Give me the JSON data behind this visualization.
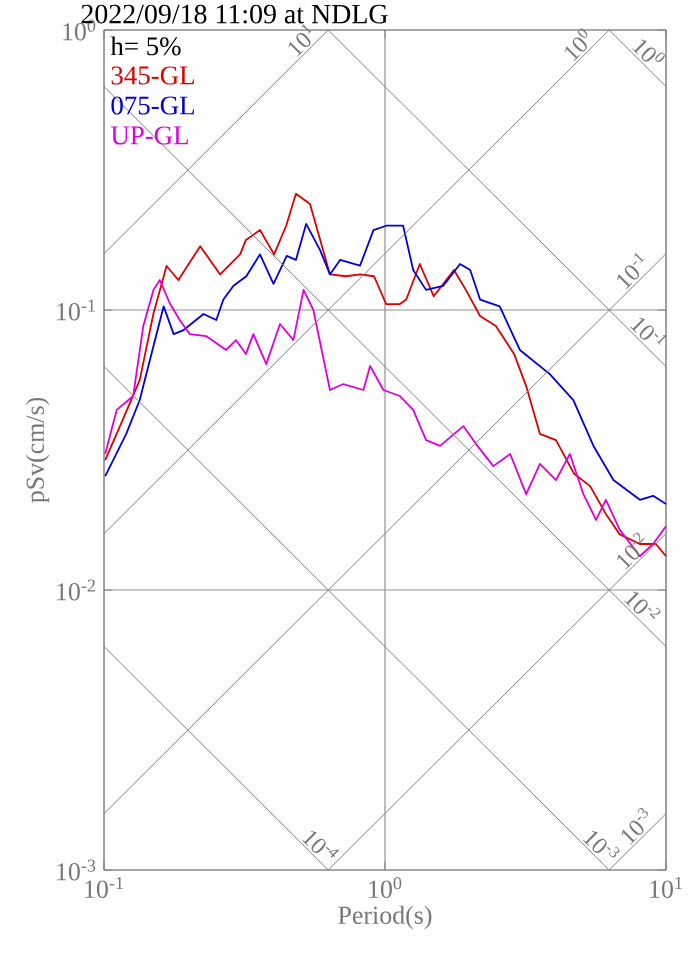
{
  "chart_data": {
    "type": "line",
    "title": "2022/09/18 11:09 at NDLG",
    "xlabel": "Period(s)",
    "ylabel": "pSv(cm/s)",
    "legend_title": "h= 5%",
    "legend": "top left",
    "log": "xy",
    "grid": true,
    "xlim": [
      0.1,
      10
    ],
    "ylim": [
      0.001,
      1
    ],
    "xticks": [
      {
        "value": 0.1,
        "label": "10$^{-1}$"
      },
      {
        "value": 1,
        "label": "10$^{0}$"
      },
      {
        "value": 10,
        "label": "10$^{1}$"
      }
    ],
    "yticks": [
      {
        "value": 0.001,
        "label": "10$^{-3}$"
      },
      {
        "value": 0.01,
        "label": "10$^{-2}$"
      },
      {
        "value": 0.1,
        "label": "10$^{-1}$"
      },
      {
        "value": 1,
        "label": "10$^{0}$"
      }
    ],
    "series": [
      {
        "name": "345-GL",
        "color": "#dd0000",
        "x": [
          0.101,
          0.114,
          0.134,
          0.15,
          0.167,
          0.184,
          0.22,
          0.259,
          0.305,
          0.32,
          0.359,
          0.403,
          0.445,
          0.482,
          0.541,
          0.637,
          0.726,
          0.815,
          0.914,
          1.01,
          1.13,
          1.19,
          1.33,
          1.49,
          1.76,
          1.94,
          2.18,
          2.48,
          2.88,
          3.18,
          3.56,
          4.06,
          4.71,
          5.37,
          6.11,
          6.85,
          8.07,
          9.2,
          10
        ],
        "values": [
          0.0291,
          0.0385,
          0.0562,
          0.0972,
          0.1436,
          0.128,
          0.169,
          0.134,
          0.158,
          0.178,
          0.193,
          0.158,
          0.2,
          0.26,
          0.239,
          0.134,
          0.132,
          0.134,
          0.132,
          0.105,
          0.105,
          0.109,
          0.146,
          0.112,
          0.139,
          0.118,
          0.0952,
          0.0877,
          0.0697,
          0.0535,
          0.0361,
          0.0343,
          0.026,
          0.0235,
          0.0187,
          0.0158,
          0.0146,
          0.0146,
          0.0132
        ]
      },
      {
        "name": "075-GL",
        "color": "#0000dd",
        "x": [
          0.101,
          0.12,
          0.134,
          0.15,
          0.163,
          0.177,
          0.192,
          0.226,
          0.251,
          0.266,
          0.289,
          0.321,
          0.359,
          0.401,
          0.447,
          0.482,
          0.524,
          0.587,
          0.637,
          0.692,
          0.815,
          0.91,
          1.01,
          1.16,
          1.26,
          1.4,
          1.61,
          1.85,
          2.01,
          2.18,
          2.56,
          3.02,
          3.86,
          4.68,
          5.52,
          6.5,
          8.07,
          9.0,
          10
        ],
        "values": [
          0.0255,
          0.0361,
          0.0477,
          0.0744,
          0.103,
          0.082,
          0.0848,
          0.0968,
          0.0921,
          0.109,
          0.122,
          0.132,
          0.158,
          0.124,
          0.156,
          0.151,
          0.203,
          0.164,
          0.134,
          0.151,
          0.144,
          0.193,
          0.2,
          0.2,
          0.139,
          0.118,
          0.122,
          0.146,
          0.139,
          0.109,
          0.103,
          0.072,
          0.059,
          0.0477,
          0.0327,
          0.0247,
          0.021,
          0.0217,
          0.0203
        ]
      },
      {
        "name": "UP-GL",
        "color": "#dd00dd",
        "x": [
          0.101,
          0.111,
          0.127,
          0.138,
          0.15,
          0.158,
          0.172,
          0.186,
          0.202,
          0.231,
          0.272,
          0.295,
          0.32,
          0.34,
          0.378,
          0.423,
          0.472,
          0.513,
          0.556,
          0.637,
          0.711,
          0.838,
          0.885,
          0.987,
          1.13,
          1.26,
          1.4,
          1.57,
          1.9,
          2.11,
          2.43,
          2.79,
          3.18,
          3.56,
          4.06,
          4.55,
          5.08,
          5.64,
          6.11,
          6.85,
          8.07,
          9.0,
          10
        ],
        "values": [
          0.0306,
          0.044,
          0.0493,
          0.0877,
          0.118,
          0.128,
          0.105,
          0.0921,
          0.082,
          0.0807,
          0.072,
          0.0781,
          0.0697,
          0.082,
          0.0641,
          0.0891,
          0.0781,
          0.118,
          0.1,
          0.0518,
          0.0544,
          0.0518,
          0.0631,
          0.0518,
          0.0493,
          0.044,
          0.0343,
          0.0327,
          0.0385,
          0.0332,
          0.0277,
          0.0306,
          0.022,
          0.0282,
          0.0247,
          0.0306,
          0.022,
          0.0178,
          0.021,
          0.0164,
          0.0132,
          0.0146,
          0.0169
        ]
      },
      {
        "color": "#808080",
        "x": [
          0.1,
          0.628
        ],
        "values": [
          0.159,
          1
        ]
      },
      {
        "color": "#808080",
        "x": [
          0.1,
          6.28
        ],
        "values": [
          0.0159,
          1
        ]
      },
      {
        "color": "#808080",
        "x": [
          0.1,
          10
        ],
        "values": [
          0.00159,
          0.159
        ]
      },
      {
        "color": "#808080",
        "x": [
          0.628,
          10
        ],
        "values": [
          0.001,
          0.0159
        ]
      },
      {
        "color": "#808080",
        "x": [
          6.28,
          10
        ],
        "values": [
          0.001,
          0.00159
        ]
      },
      {
        "color": "#808080",
        "x": [
          6.28,
          10
        ],
        "values": [
          1,
          0.628
        ]
      },
      {
        "color": "#808080",
        "x": [
          0.628,
          10
        ],
        "values": [
          1,
          0.0628
        ]
      },
      {
        "color": "#808080",
        "x": [
          0.1,
          10
        ],
        "values": [
          0.628,
          0.00628
        ]
      },
      {
        "color": "#808080",
        "x": [
          0.1,
          6.28
        ],
        "values": [
          0.0628,
          0.001
        ]
      },
      {
        "color": "#808080",
        "x": [
          0.1,
          0.628
        ],
        "values": [
          0.00628,
          0.001
        ]
      }
    ],
    "annotations": [
      {
        "text": "10$^{1}$",
        "x": 0.54,
        "y": 0.859
      },
      {
        "text": "10$^{0}$",
        "x": 5.2,
        "y": 0.828
      },
      {
        "text": "10$^{-1}$",
        "x": 8.1,
        "y": 0.129
      },
      {
        "text": "10$^{-2}$",
        "x": 8.1,
        "y": 0.0129
      },
      {
        "text": "10$^{-3}$",
        "x": 8.4,
        "y": 0.00134
      },
      {
        "text": "10$^{0}$",
        "x": 8.1,
        "y": 0.776
      },
      {
        "text": "10$^{-1}$",
        "x": 8.1,
        "y": 0.0776
      },
      {
        "text": "10$^{-2}$",
        "x": 7.7,
        "y": 0.00816
      },
      {
        "text": "10$^{-3}$",
        "x": 5.5,
        "y": 0.00114
      },
      {
        "text": "10$^{-4}$",
        "x": 0.55,
        "y": 0.00114
      }
    ]
  }
}
